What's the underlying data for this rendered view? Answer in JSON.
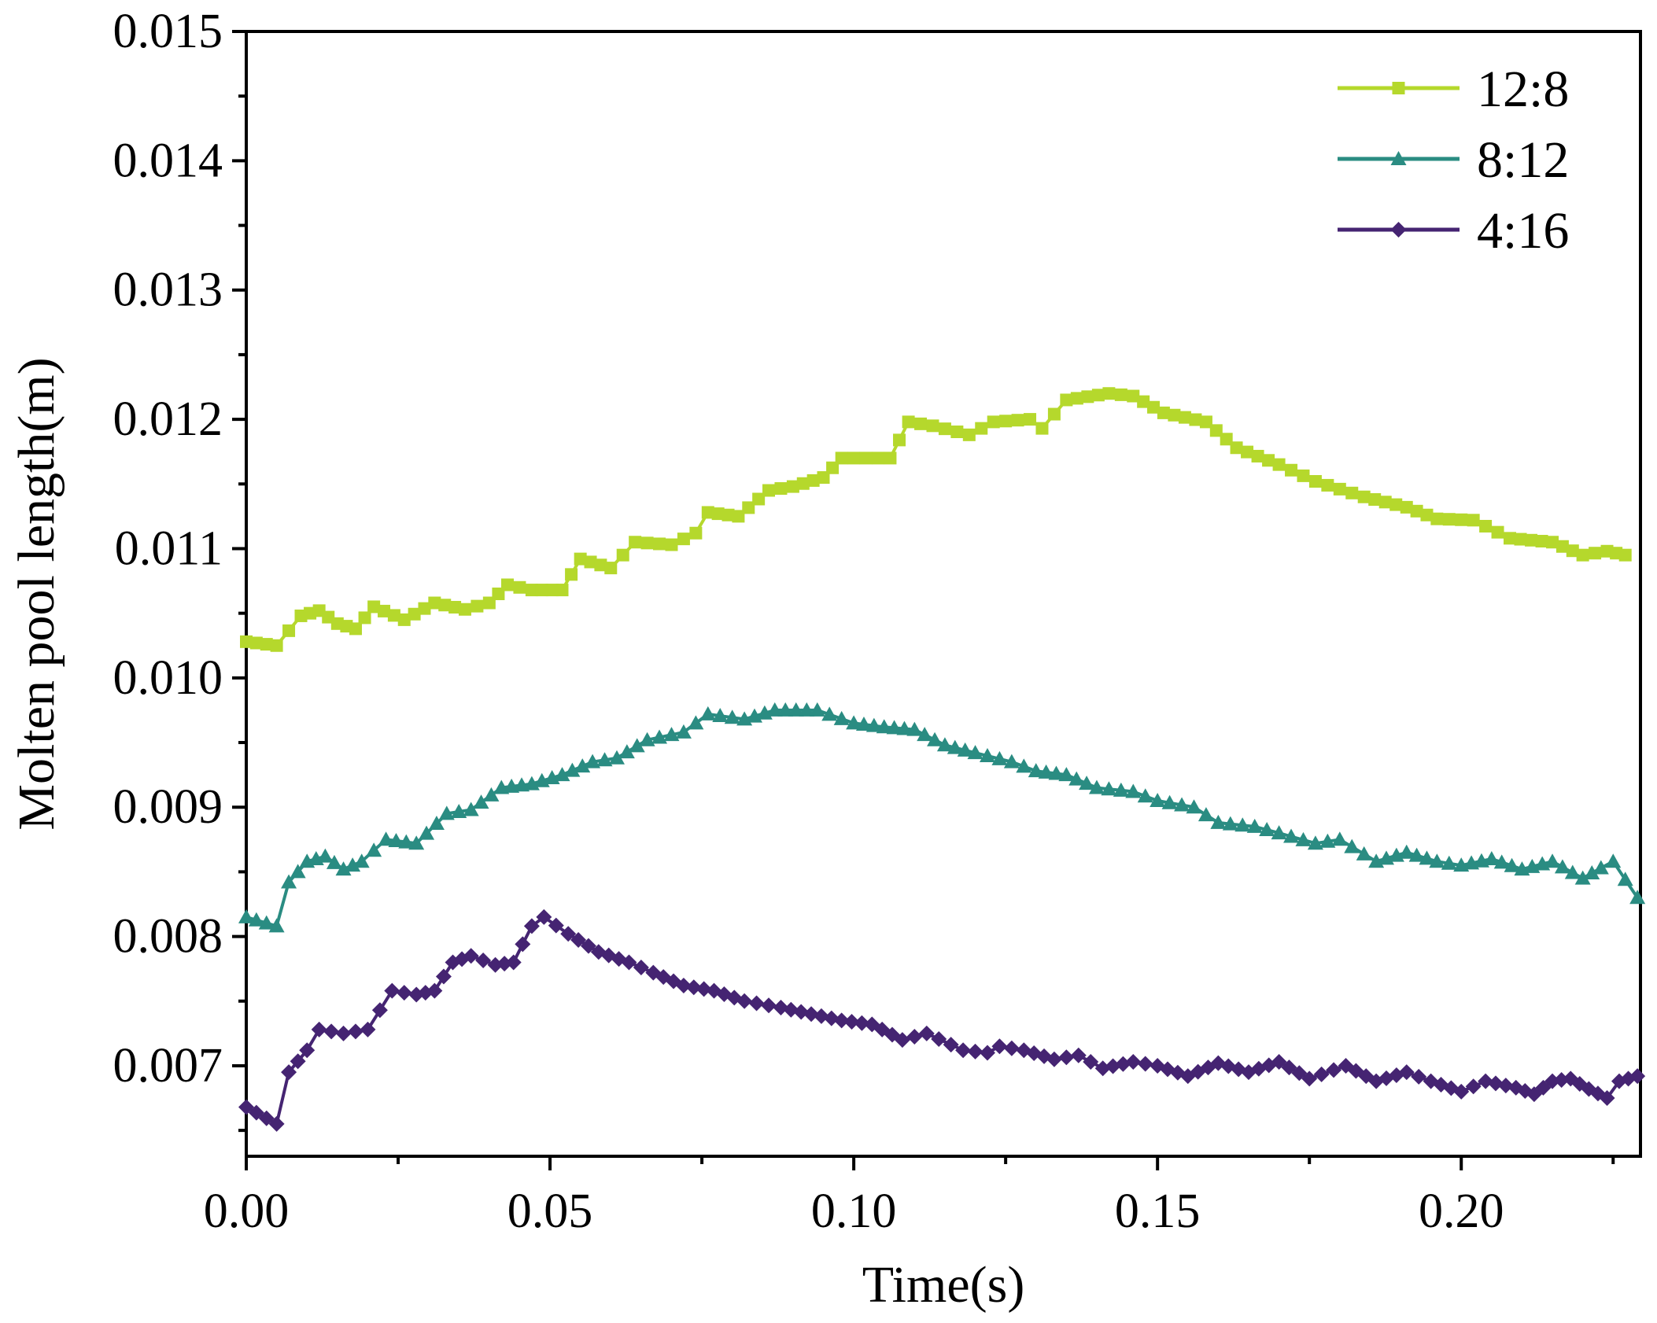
{
  "chart_data": {
    "type": "line",
    "title": "",
    "xlabel": "Time(s)",
    "ylabel": "Molten pool length(m)",
    "xlim": [
      0.0,
      0.2295
    ],
    "ylim": [
      0.0063,
      0.015
    ],
    "x_ticks": [
      "0.00",
      "0.05",
      "0.10",
      "0.15",
      "0.20"
    ],
    "y_ticks": [
      "0.007",
      "0.008",
      "0.009",
      "0.010",
      "0.011",
      "0.012",
      "0.013",
      "0.014",
      "0.015"
    ],
    "grid": false,
    "legend_position": "top-right",
    "series": [
      {
        "name": "12:8",
        "color": "#b5d82c",
        "marker": "square",
        "keypoints": [
          [
            0.0,
            0.01028
          ],
          [
            0.005,
            0.01025
          ],
          [
            0.009,
            0.01048
          ],
          [
            0.012,
            0.01052
          ],
          [
            0.015,
            0.01042
          ],
          [
            0.018,
            0.01038
          ],
          [
            0.021,
            0.01055
          ],
          [
            0.026,
            0.01045
          ],
          [
            0.031,
            0.01058
          ],
          [
            0.036,
            0.01053
          ],
          [
            0.04,
            0.01058
          ],
          [
            0.043,
            0.01072
          ],
          [
            0.047,
            0.01068
          ],
          [
            0.052,
            0.01068
          ],
          [
            0.055,
            0.01092
          ],
          [
            0.06,
            0.01085
          ],
          [
            0.064,
            0.01105
          ],
          [
            0.07,
            0.01103
          ],
          [
            0.074,
            0.01112
          ],
          [
            0.076,
            0.01128
          ],
          [
            0.081,
            0.01125
          ],
          [
            0.086,
            0.01145
          ],
          [
            0.09,
            0.01148
          ],
          [
            0.095,
            0.01155
          ],
          [
            0.098,
            0.0117
          ],
          [
            0.106,
            0.0117
          ],
          [
            0.109,
            0.01198
          ],
          [
            0.113,
            0.01195
          ],
          [
            0.119,
            0.01188
          ],
          [
            0.123,
            0.01198
          ],
          [
            0.129,
            0.012
          ],
          [
            0.131,
            0.01193
          ],
          [
            0.135,
            0.01215
          ],
          [
            0.142,
            0.0122
          ],
          [
            0.146,
            0.01218
          ],
          [
            0.151,
            0.01205
          ],
          [
            0.158,
            0.01198
          ],
          [
            0.163,
            0.01178
          ],
          [
            0.17,
            0.01165
          ],
          [
            0.176,
            0.01152
          ],
          [
            0.184,
            0.0114
          ],
          [
            0.191,
            0.01132
          ],
          [
            0.196,
            0.01123
          ],
          [
            0.202,
            0.01122
          ],
          [
            0.208,
            0.01108
          ],
          [
            0.215,
            0.01105
          ],
          [
            0.22,
            0.01095
          ],
          [
            0.224,
            0.01098
          ],
          [
            0.227,
            0.01095
          ]
        ]
      },
      {
        "name": "8:12",
        "color": "#2a8c82",
        "marker": "triangle",
        "keypoints": [
          [
            0.0,
            0.00815
          ],
          [
            0.005,
            0.00808
          ],
          [
            0.007,
            0.00842
          ],
          [
            0.01,
            0.00858
          ],
          [
            0.013,
            0.00862
          ],
          [
            0.016,
            0.00852
          ],
          [
            0.019,
            0.00858
          ],
          [
            0.023,
            0.00875
          ],
          [
            0.028,
            0.00872
          ],
          [
            0.033,
            0.00895
          ],
          [
            0.037,
            0.00898
          ],
          [
            0.042,
            0.00915
          ],
          [
            0.047,
            0.00918
          ],
          [
            0.052,
            0.00925
          ],
          [
            0.057,
            0.00935
          ],
          [
            0.061,
            0.00938
          ],
          [
            0.066,
            0.00952
          ],
          [
            0.072,
            0.00958
          ],
          [
            0.076,
            0.00972
          ],
          [
            0.082,
            0.00968
          ],
          [
            0.087,
            0.00975
          ],
          [
            0.094,
            0.00975
          ],
          [
            0.1,
            0.00965
          ],
          [
            0.105,
            0.00962
          ],
          [
            0.11,
            0.0096
          ],
          [
            0.115,
            0.00948
          ],
          [
            0.12,
            0.00942
          ],
          [
            0.126,
            0.00935
          ],
          [
            0.13,
            0.00928
          ],
          [
            0.135,
            0.00925
          ],
          [
            0.14,
            0.00915
          ],
          [
            0.146,
            0.00912
          ],
          [
            0.15,
            0.00905
          ],
          [
            0.156,
            0.009
          ],
          [
            0.16,
            0.00888
          ],
          [
            0.166,
            0.00885
          ],
          [
            0.17,
            0.0088
          ],
          [
            0.176,
            0.00872
          ],
          [
            0.18,
            0.00875
          ],
          [
            0.186,
            0.00858
          ],
          [
            0.191,
            0.00865
          ],
          [
            0.196,
            0.00858
          ],
          [
            0.2,
            0.00855
          ],
          [
            0.205,
            0.0086
          ],
          [
            0.21,
            0.00852
          ],
          [
            0.215,
            0.00858
          ],
          [
            0.22,
            0.00845
          ],
          [
            0.223,
            0.00853
          ],
          [
            0.225,
            0.00858
          ],
          [
            0.229,
            0.0083
          ]
        ]
      },
      {
        "name": "4:16",
        "color": "#452472",
        "marker": "diamond",
        "keypoints": [
          [
            0.0,
            0.00668
          ],
          [
            0.005,
            0.00655
          ],
          [
            0.007,
            0.00695
          ],
          [
            0.01,
            0.00712
          ],
          [
            0.012,
            0.00728
          ],
          [
            0.016,
            0.00725
          ],
          [
            0.02,
            0.00728
          ],
          [
            0.024,
            0.00758
          ],
          [
            0.028,
            0.00755
          ],
          [
            0.031,
            0.00758
          ],
          [
            0.034,
            0.0078
          ],
          [
            0.037,
            0.00785
          ],
          [
            0.041,
            0.00778
          ],
          [
            0.044,
            0.0078
          ],
          [
            0.047,
            0.00808
          ],
          [
            0.049,
            0.00815
          ],
          [
            0.053,
            0.00802
          ],
          [
            0.058,
            0.00788
          ],
          [
            0.063,
            0.0078
          ],
          [
            0.067,
            0.00772
          ],
          [
            0.072,
            0.00762
          ],
          [
            0.077,
            0.00758
          ],
          [
            0.082,
            0.0075
          ],
          [
            0.088,
            0.00745
          ],
          [
            0.093,
            0.0074
          ],
          [
            0.098,
            0.00735
          ],
          [
            0.103,
            0.00732
          ],
          [
            0.108,
            0.0072
          ],
          [
            0.112,
            0.00725
          ],
          [
            0.118,
            0.00712
          ],
          [
            0.122,
            0.0071
          ],
          [
            0.124,
            0.00715
          ],
          [
            0.128,
            0.00712
          ],
          [
            0.133,
            0.00705
          ],
          [
            0.137,
            0.00708
          ],
          [
            0.141,
            0.00698
          ],
          [
            0.146,
            0.00703
          ],
          [
            0.15,
            0.007
          ],
          [
            0.155,
            0.00692
          ],
          [
            0.16,
            0.00702
          ],
          [
            0.165,
            0.00695
          ],
          [
            0.17,
            0.00703
          ],
          [
            0.175,
            0.0069
          ],
          [
            0.181,
            0.007
          ],
          [
            0.186,
            0.00688
          ],
          [
            0.191,
            0.00695
          ],
          [
            0.195,
            0.00688
          ],
          [
            0.2,
            0.0068
          ],
          [
            0.204,
            0.00688
          ],
          [
            0.209,
            0.00683
          ],
          [
            0.212,
            0.00678
          ],
          [
            0.215,
            0.00688
          ],
          [
            0.218,
            0.0069
          ],
          [
            0.221,
            0.00682
          ],
          [
            0.224,
            0.00675
          ],
          [
            0.226,
            0.00688
          ],
          [
            0.229,
            0.00692
          ]
        ]
      }
    ]
  }
}
